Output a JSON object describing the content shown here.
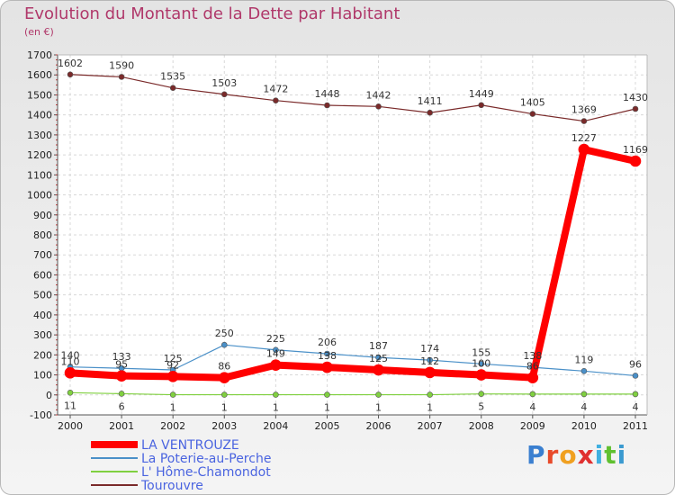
{
  "header": {
    "title": "Evolution du Montant de la Dette par Habitant",
    "unit": "(en €)"
  },
  "logo": {
    "text": "Proxiti"
  },
  "chart_data": {
    "type": "line",
    "title": "Evolution du Montant de la Dette par Habitant",
    "ylabel": "(en €)",
    "xlabel": "",
    "categories": [
      "2000",
      "2001",
      "2002",
      "2003",
      "2004",
      "2005",
      "2006",
      "2007",
      "2008",
      "2009",
      "2010",
      "2011"
    ],
    "ylim": [
      -100,
      1700
    ],
    "yticks": [
      -100,
      0,
      100,
      200,
      300,
      400,
      500,
      600,
      700,
      800,
      900,
      1000,
      1100,
      1200,
      1300,
      1400,
      1500,
      1600,
      1700
    ],
    "grid": true,
    "legend": "bottom-left",
    "series": [
      {
        "name": "Tourouvre",
        "color": "#7a2a2a",
        "values": [
          1602,
          1590,
          1535,
          1503,
          1472,
          1448,
          1442,
          1411,
          1449,
          1405,
          1369,
          1430
        ],
        "labels": [
          "1602",
          "1590",
          "1535",
          "1503",
          "1472",
          "1448",
          "1442",
          "1411",
          "1449",
          "1405",
          "1369",
          "1430"
        ]
      },
      {
        "name": "La Poterie-au-Perche",
        "color": "#4a90c8",
        "values": [
          140,
          133,
          125,
          250,
          225,
          206,
          187,
          174,
          155,
          138,
          119,
          96
        ],
        "labels": [
          "140",
          "133",
          "125",
          "250",
          "225",
          "206",
          "187",
          "174",
          "155",
          "138",
          "119",
          "96"
        ]
      },
      {
        "name": "L' Hôme-Chamondot",
        "color": "#80d040",
        "values": [
          11,
          6,
          1,
          1,
          1,
          1,
          1,
          1,
          5,
          4,
          4,
          4
        ],
        "labels": [
          "11",
          "6",
          "1",
          "1",
          "1",
          "1",
          "1",
          "1",
          "5",
          "4",
          "4",
          "4"
        ]
      },
      {
        "name": "LA VENTROUZE",
        "color": "#ff0000",
        "values": [
          110,
          95,
          92,
          86,
          149,
          138,
          125,
          112,
          100,
          86,
          1227,
          1169
        ],
        "labels": [
          "110",
          "95",
          "92",
          "86",
          "149",
          "138",
          "125",
          "112",
          "100",
          "86",
          "1227",
          "1169"
        ]
      }
    ]
  }
}
